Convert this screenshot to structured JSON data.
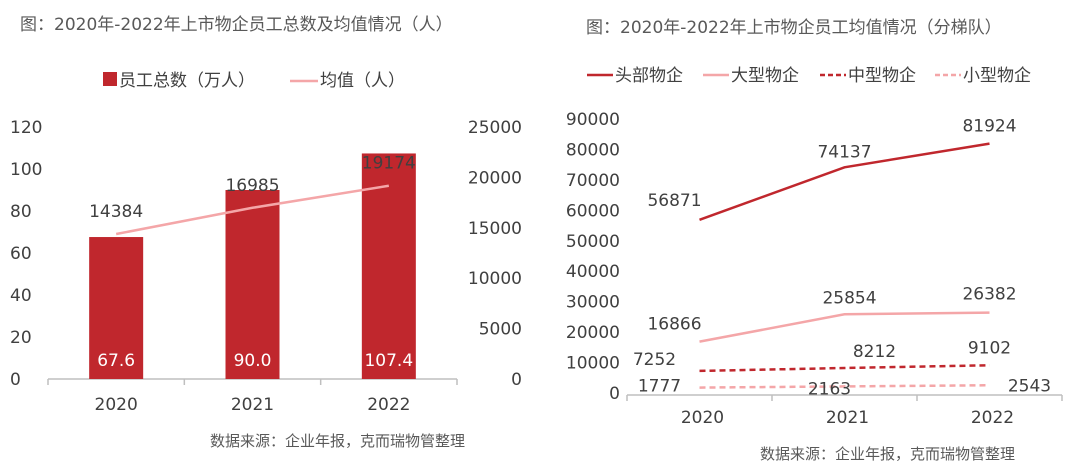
{
  "chart_data": [
    {
      "type": "bar",
      "title": "图：2020年-2022年上市物企员工总数及均值情况（人）",
      "categories": [
        "2020",
        "2021",
        "2022"
      ],
      "series": [
        {
          "name": "员工总数（万人）",
          "kind": "bar",
          "axis": "left",
          "values": [
            67.6,
            90.0,
            107.4
          ],
          "labels": [
            "67.6",
            "90.0",
            "107.4"
          ],
          "color": "#C0272D"
        },
        {
          "name": "均值（人）",
          "kind": "line",
          "axis": "right",
          "values": [
            14384,
            16985,
            19174
          ],
          "labels": [
            "14384",
            "16985",
            "19174"
          ],
          "color": "#F4A6A8"
        }
      ],
      "ylim": [
        0,
        120
      ],
      "yticks": [
        "0",
        "20",
        "40",
        "60",
        "80",
        "100",
        "120"
      ],
      "y2lim": [
        0,
        25000
      ],
      "y2ticks": [
        "0",
        "5000",
        "10000",
        "15000",
        "20000",
        "25000"
      ],
      "legend": "top-center",
      "grid": false,
      "source": "数据来源：企业年报，克而瑞物管整理"
    },
    {
      "type": "line",
      "title": "图：2020年-2022年上市物企员工均值情况（分梯队）",
      "categories": [
        "2020",
        "2021",
        "2022"
      ],
      "series": [
        {
          "name": "头部物企",
          "values": [
            56871,
            74137,
            81924
          ],
          "labels": [
            "56871",
            "74137",
            "81924"
          ],
          "color": "#C0272D",
          "dashed": false
        },
        {
          "name": "大型物企",
          "values": [
            16866,
            25854,
            26382
          ],
          "labels": [
            "16866",
            "25854",
            "26382"
          ],
          "color": "#F4A6A8",
          "dashed": false
        },
        {
          "name": "中型物企",
          "values": [
            7252,
            8212,
            9102
          ],
          "labels": [
            "7252",
            "8212",
            "9102"
          ],
          "color": "#C0272D",
          "dashed": true
        },
        {
          "name": "小型物企",
          "values": [
            1777,
            2163,
            2543
          ],
          "labels": [
            "1777",
            "2163",
            "2543"
          ],
          "color": "#F4A6A8",
          "dashed": true
        }
      ],
      "ylim": [
        0,
        90000
      ],
      "yticks": [
        "0",
        "10000",
        "20000",
        "30000",
        "40000",
        "50000",
        "60000",
        "70000",
        "80000",
        "90000"
      ],
      "legend": "top",
      "grid": false,
      "source": "数据来源：企业年报，克而瑞物管整理"
    }
  ]
}
